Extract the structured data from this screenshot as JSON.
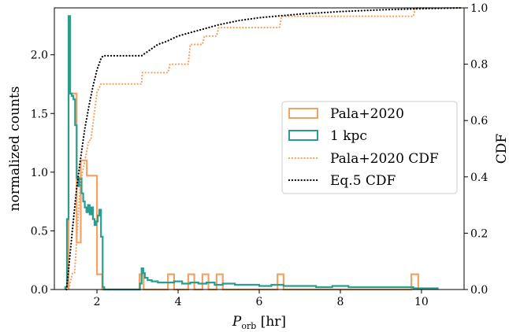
{
  "chart_data": {
    "type": "histogram",
    "xlabel_main": "P",
    "xlabel_sub": "orb",
    "xlabel_unit": " [hr]",
    "ylabel_left": "normalized counts",
    "ylabel_right": "CDF",
    "xlim": [
      0.95,
      11.05
    ],
    "ylim_left": [
      0,
      2.4
    ],
    "ylim_right": [
      0,
      1.0
    ],
    "x_ticks": [
      2,
      4,
      6,
      8,
      10
    ],
    "y_ticks_left": [
      0.0,
      0.5,
      1.0,
      1.5,
      2.0
    ],
    "y_ticks_right": [
      0.0,
      0.2,
      0.4,
      0.6,
      0.8,
      1.0
    ],
    "legend_position": "center-right",
    "series": [
      {
        "name": "Pala+2020",
        "kind": "step-histogram",
        "axis": "left",
        "color": "#f4a261",
        "bins": [
          [
            1.3,
            1.4,
            1.67
          ],
          [
            1.4,
            1.5,
            1.67
          ],
          [
            1.5,
            1.6,
            0.4
          ],
          [
            1.6,
            1.75,
            1.1
          ],
          [
            1.75,
            1.85,
            0.97
          ],
          [
            1.85,
            2.0,
            0.97
          ],
          [
            2.0,
            2.13,
            0.13
          ],
          [
            2.13,
            3.05,
            0.0
          ],
          [
            3.05,
            3.15,
            0.13
          ],
          [
            3.15,
            3.75,
            0.0
          ],
          [
            3.75,
            3.9,
            0.13
          ],
          [
            3.9,
            4.25,
            0.0
          ],
          [
            4.25,
            4.4,
            0.13
          ],
          [
            4.4,
            4.6,
            0.0
          ],
          [
            4.6,
            4.75,
            0.13
          ],
          [
            4.75,
            4.95,
            0.0
          ],
          [
            4.95,
            5.1,
            0.13
          ],
          [
            5.1,
            6.45,
            0.0
          ],
          [
            6.45,
            6.6,
            0.13
          ],
          [
            6.6,
            9.75,
            0.0
          ],
          [
            9.75,
            9.92,
            0.13
          ]
        ]
      },
      {
        "name": "1 kpc",
        "kind": "step-histogram",
        "axis": "left",
        "color": "#2a9d8f",
        "bins": [
          [
            1.22,
            1.26,
            0.02
          ],
          [
            1.26,
            1.3,
            0.6
          ],
          [
            1.3,
            1.34,
            2.33
          ],
          [
            1.34,
            1.38,
            1.67
          ],
          [
            1.38,
            1.42,
            1.65
          ],
          [
            1.42,
            1.46,
            1.62
          ],
          [
            1.46,
            1.5,
            1.4
          ],
          [
            1.5,
            1.54,
            0.95
          ],
          [
            1.54,
            1.58,
            0.88
          ],
          [
            1.58,
            1.62,
            0.95
          ],
          [
            1.62,
            1.66,
            0.82
          ],
          [
            1.66,
            1.7,
            0.75
          ],
          [
            1.7,
            1.74,
            0.7
          ],
          [
            1.74,
            1.78,
            0.66
          ],
          [
            1.78,
            1.82,
            0.72
          ],
          [
            1.82,
            1.86,
            0.64
          ],
          [
            1.86,
            1.9,
            0.7
          ],
          [
            1.9,
            1.94,
            0.6
          ],
          [
            1.94,
            1.98,
            0.55
          ],
          [
            1.98,
            2.02,
            0.58
          ],
          [
            2.02,
            2.06,
            0.63
          ],
          [
            2.06,
            2.1,
            0.68
          ],
          [
            2.1,
            2.14,
            0.45
          ],
          [
            2.14,
            2.18,
            0.02
          ],
          [
            2.18,
            3.06,
            0.0
          ],
          [
            3.06,
            3.1,
            0.05
          ],
          [
            3.1,
            3.14,
            0.18
          ],
          [
            3.14,
            3.18,
            0.14
          ],
          [
            3.18,
            3.25,
            0.1
          ],
          [
            3.25,
            3.35,
            0.08
          ],
          [
            3.35,
            3.5,
            0.07
          ],
          [
            3.5,
            3.7,
            0.06
          ],
          [
            3.7,
            3.9,
            0.06
          ],
          [
            3.9,
            4.1,
            0.07
          ],
          [
            4.1,
            4.3,
            0.05
          ],
          [
            4.3,
            4.5,
            0.06
          ],
          [
            4.5,
            4.7,
            0.05
          ],
          [
            4.7,
            4.9,
            0.06
          ],
          [
            4.9,
            5.1,
            0.04
          ],
          [
            5.1,
            5.4,
            0.05
          ],
          [
            5.4,
            5.7,
            0.04
          ],
          [
            5.7,
            6.0,
            0.04
          ],
          [
            6.0,
            6.3,
            0.03
          ],
          [
            6.3,
            6.6,
            0.04
          ],
          [
            6.6,
            7.0,
            0.03
          ],
          [
            7.0,
            7.4,
            0.03
          ],
          [
            7.4,
            7.8,
            0.02
          ],
          [
            7.8,
            8.2,
            0.03
          ],
          [
            8.2,
            8.6,
            0.02
          ],
          [
            8.6,
            9.0,
            0.02
          ],
          [
            9.0,
            9.4,
            0.02
          ],
          [
            9.4,
            9.8,
            0.02
          ],
          [
            9.8,
            10.1,
            0.01
          ],
          [
            10.1,
            10.4,
            0.01
          ]
        ]
      },
      {
        "name": "Pala+2020 CDF",
        "kind": "dotted-step",
        "axis": "right",
        "color": "#f4a261",
        "x": [
          1.25,
          1.3,
          1.4,
          1.45,
          1.6,
          1.62,
          1.8,
          1.85,
          2.0,
          2.1,
          3.1,
          3.12,
          3.75,
          3.8,
          4.25,
          4.3,
          4.6,
          4.65,
          4.95,
          5.0,
          6.5,
          6.55,
          9.8,
          9.85,
          11.0
        ],
        "y": [
          0.0,
          0.0,
          0.06,
          0.06,
          0.4,
          0.4,
          0.53,
          0.53,
          0.7,
          0.73,
          0.73,
          0.77,
          0.77,
          0.8,
          0.8,
          0.87,
          0.87,
          0.9,
          0.9,
          0.93,
          0.93,
          0.97,
          0.97,
          1.0,
          1.0
        ]
      },
      {
        "name": "Eq.5 CDF",
        "kind": "dotted-line",
        "axis": "right",
        "color": "#000000",
        "x": [
          1.25,
          1.3,
          1.4,
          1.5,
          1.6,
          1.7,
          1.8,
          1.9,
          2.0,
          2.1,
          2.15,
          3.1,
          3.3,
          3.5,
          3.7,
          4.0,
          4.5,
          5.0,
          5.5,
          6.0,
          7.0,
          8.0,
          9.0,
          10.0,
          11.0
        ],
        "y": [
          0.0,
          0.07,
          0.22,
          0.36,
          0.47,
          0.57,
          0.65,
          0.72,
          0.78,
          0.82,
          0.83,
          0.83,
          0.85,
          0.87,
          0.88,
          0.9,
          0.92,
          0.94,
          0.955,
          0.965,
          0.978,
          0.987,
          0.993,
          0.997,
          1.0
        ]
      }
    ]
  }
}
